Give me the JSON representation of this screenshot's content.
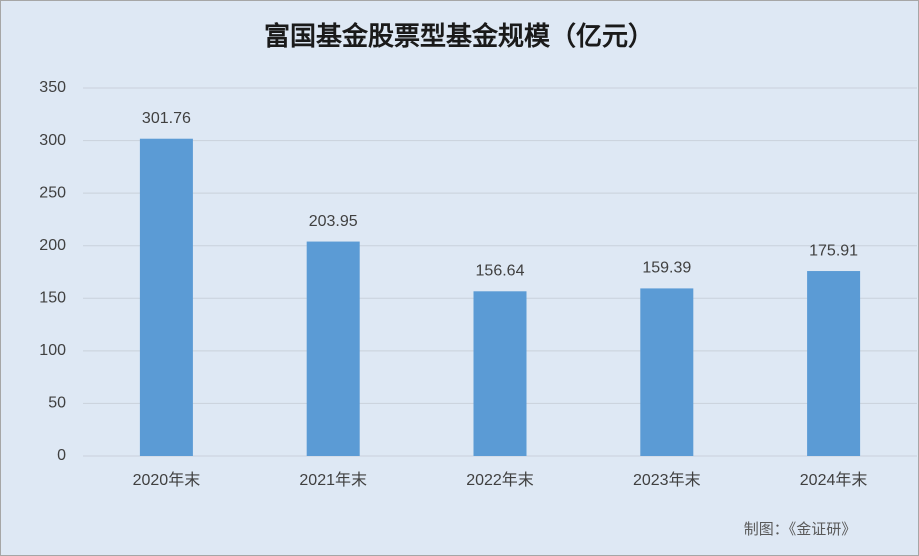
{
  "chart_data": {
    "type": "bar",
    "title": "富国基金股票型基金规模（亿元）",
    "categories": [
      "2020年末",
      "2021年末",
      "2022年末",
      "2023年末",
      "2024年末"
    ],
    "values": [
      301.76,
      203.95,
      156.64,
      159.39,
      175.91
    ],
    "color": "#5b9bd5",
    "ylim": [
      0,
      350
    ],
    "yticks": [
      0,
      50,
      100,
      150,
      200,
      250,
      300,
      350
    ],
    "grid": true,
    "data_labels": true,
    "source": "制图：《金证研》"
  }
}
